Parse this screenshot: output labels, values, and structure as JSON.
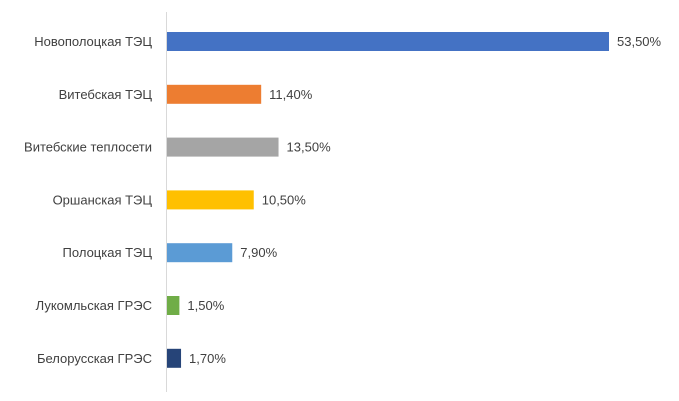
{
  "chart_data": {
    "type": "bar",
    "orientation": "horizontal",
    "categories": [
      "Новополоцкая ТЭЦ",
      "Витебская ТЭЦ",
      "Витебские теплосети",
      "Оршанская ТЭЦ",
      "Полоцкая ТЭЦ",
      "Лукомльская ГРЭС",
      "Белорусская ГРЭС"
    ],
    "values": [
      53.5,
      11.4,
      13.5,
      10.5,
      7.9,
      1.5,
      1.7
    ],
    "value_labels": [
      "53,50%",
      "11,40%",
      "13,50%",
      "10,50%",
      "7,90%",
      "1,50%",
      "1,70%"
    ],
    "colors": [
      "#4472C4",
      "#ED7D31",
      "#A5A5A5",
      "#FFC000",
      "#5B9BD5",
      "#70AD47",
      "#264478"
    ],
    "title": "",
    "xlabel": "",
    "ylabel": "",
    "xlim": [
      0,
      53.5
    ],
    "grid": false,
    "legend": "none",
    "axis_line_color": "#D9D9D9"
  }
}
